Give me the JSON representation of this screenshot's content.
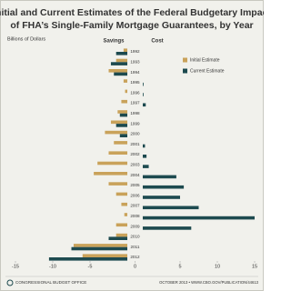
{
  "chart_data": {
    "type": "bar",
    "orientation": "horizontal",
    "title": "Initial and Current Estimates of the Federal Budgetary Impact of FHA’s Single-Family Mortgage Guarantees, by Year",
    "subtitle": "Billions of Dollars",
    "negative_label": "Savings",
    "positive_label": "Cost",
    "footer_left": "CONGRESSIONAL BUDGET OFFICE",
    "footer_right": "OCTOBER 2013 • WWW.CBO.GOV/PUBLICATION/44613",
    "categories": [
      "1992",
      "1993",
      "1994",
      "1995",
      "1996",
      "1997",
      "1998",
      "1999",
      "2000",
      "2001",
      "2002",
      "2003",
      "2004",
      "2005",
      "2006",
      "2007",
      "2008",
      "2009",
      "2010",
      "2011",
      "2012"
    ],
    "series": [
      {
        "name": "Initial Estimate",
        "color": "#c9a25a",
        "values": [
          -0.5,
          -1.5,
          -2.5,
          -0.5,
          -0.3,
          -0.8,
          -1.3,
          -2.2,
          -3.0,
          -1.8,
          -2.5,
          -4.0,
          -4.5,
          -2.5,
          -1.5,
          -0.8,
          -0.4,
          -1.5,
          -1.5,
          -7.2,
          -6.0
        ]
      },
      {
        "name": "Current Estimate",
        "color": "#1d4a4f",
        "values": [
          -1.5,
          -2.2,
          -1.8,
          0.1,
          0.1,
          0.4,
          -1.0,
          -1.5,
          -1.0,
          0.3,
          0.5,
          0.8,
          4.5,
          5.5,
          5.0,
          7.5,
          15.0,
          6.5,
          -2.5,
          -7.5,
          -10.5
        ]
      }
    ],
    "xlim": [
      -15,
      15
    ],
    "xticks": [
      -15,
      -10,
      -5,
      0,
      5,
      10,
      15
    ],
    "legend": "right"
  }
}
